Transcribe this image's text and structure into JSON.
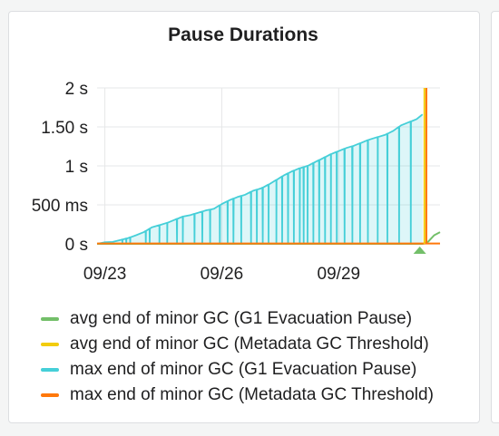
{
  "panel": {
    "title": "Pause Durations"
  },
  "chart_data": {
    "type": "area",
    "title": "Pause Durations",
    "y_unit": "ms",
    "ylim": [
      0,
      2000
    ],
    "y_ticks": [
      {
        "value": 0,
        "label": "0 s"
      },
      {
        "value": 500,
        "label": "500 ms"
      },
      {
        "value": 1000,
        "label": "1 s"
      },
      {
        "value": 1500,
        "label": "1.50 s"
      },
      {
        "value": 2000,
        "label": "2 s"
      }
    ],
    "xlim_days": [
      22.8,
      31.6
    ],
    "x_ticks": [
      {
        "value": 23,
        "label": "09/23"
      },
      {
        "value": 26,
        "label": "09/26"
      },
      {
        "value": 29,
        "label": "09/29"
      }
    ],
    "grid": true,
    "legend_position": "bottom",
    "series": [
      {
        "name": "avg end of minor GC (G1 Evacuation Pause)",
        "color": "#73bf69",
        "points": [
          [
            22.8,
            0
          ],
          [
            31.15,
            0
          ],
          [
            31.2,
            5
          ],
          [
            31.3,
            30
          ],
          [
            31.45,
            110
          ],
          [
            31.6,
            150
          ]
        ]
      },
      {
        "name": "avg end of minor GC (Metadata GC Threshold)",
        "color": "#f2cc0c",
        "points": [
          [
            31.2,
            0
          ],
          [
            31.2,
            2000
          ]
        ]
      },
      {
        "name": "max end of minor GC (G1 Evacuation Pause)",
        "color": "#45cfd8",
        "points": [
          [
            22.8,
            0
          ],
          [
            23.0,
            20
          ],
          [
            23.2,
            25
          ],
          [
            23.4,
            50
          ],
          [
            23.6,
            75
          ],
          [
            23.8,
            110
          ],
          [
            24.0,
            150
          ],
          [
            24.2,
            210
          ],
          [
            24.4,
            240
          ],
          [
            24.6,
            270
          ],
          [
            24.8,
            310
          ],
          [
            25.0,
            350
          ],
          [
            25.2,
            370
          ],
          [
            25.4,
            400
          ],
          [
            25.6,
            430
          ],
          [
            25.8,
            450
          ],
          [
            26.0,
            510
          ],
          [
            26.2,
            560
          ],
          [
            26.4,
            600
          ],
          [
            26.6,
            630
          ],
          [
            26.8,
            680
          ],
          [
            27.0,
            710
          ],
          [
            27.2,
            760
          ],
          [
            27.4,
            820
          ],
          [
            27.6,
            880
          ],
          [
            27.8,
            930
          ],
          [
            28.0,
            970
          ],
          [
            28.2,
            1000
          ],
          [
            28.4,
            1050
          ],
          [
            28.6,
            1100
          ],
          [
            28.8,
            1150
          ],
          [
            29.0,
            1190
          ],
          [
            29.2,
            1230
          ],
          [
            29.4,
            1260
          ],
          [
            29.6,
            1300
          ],
          [
            29.8,
            1340
          ],
          [
            30.0,
            1370
          ],
          [
            30.2,
            1400
          ],
          [
            30.4,
            1450
          ],
          [
            30.6,
            1520
          ],
          [
            30.8,
            1560
          ],
          [
            31.0,
            1600
          ],
          [
            31.1,
            1640
          ],
          [
            31.15,
            1660
          ]
        ],
        "drops": [
          23.45,
          23.55,
          23.65,
          24.05,
          24.15,
          24.4,
          24.6,
          24.85,
          25.0,
          25.3,
          25.5,
          25.7,
          25.95,
          26.15,
          26.3,
          26.5,
          26.75,
          26.9,
          27.05,
          27.2,
          27.4,
          27.55,
          27.7,
          27.85,
          28.0,
          28.1,
          28.2,
          28.35,
          28.5,
          28.65,
          28.8,
          28.95,
          29.15,
          29.35,
          29.55,
          29.75,
          30.0,
          30.25,
          30.55,
          30.85
        ]
      },
      {
        "name": "max end of minor GC (Metadata GC Threshold)",
        "color": "#ff780a",
        "points": [
          [
            22.8,
            5
          ],
          [
            31.6,
            5
          ],
          [
            31.25,
            0
          ],
          [
            31.25,
            2000
          ]
        ]
      }
    ]
  }
}
